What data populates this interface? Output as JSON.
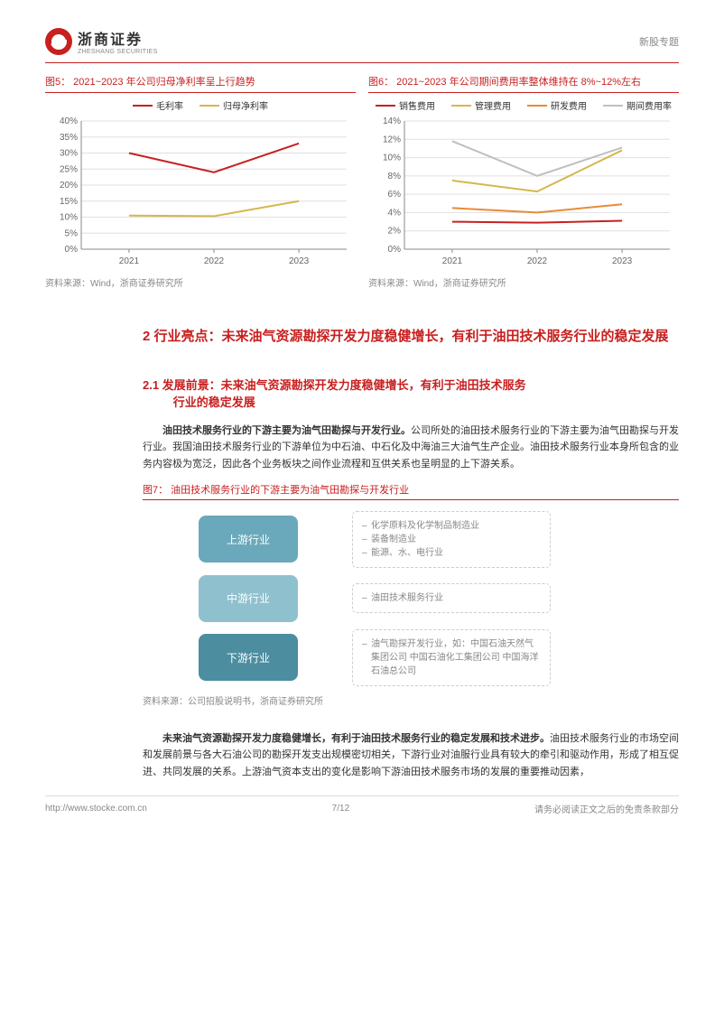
{
  "header": {
    "company_cn": "浙商证券",
    "company_en": "ZHESHANG SECURITIES",
    "right_text": "新股专题"
  },
  "chart5": {
    "type": "line",
    "title": "图5：  2021~2023 年公司归母净利率呈上行趋势",
    "categories": [
      "2021",
      "2022",
      "2023"
    ],
    "series": [
      {
        "name": "毛利率",
        "color": "#c82020",
        "values": [
          30,
          24,
          33
        ]
      },
      {
        "name": "归母净利率",
        "color": "#d6b64d",
        "values": [
          10.5,
          10.3,
          15
        ]
      }
    ],
    "ylim": [
      0,
      40
    ],
    "ytick_step": 5,
    "y_suffix": "%",
    "background": "#ffffff",
    "grid_color": "#e0e0e0",
    "source": "资料来源：Wind，浙商证券研究所"
  },
  "chart6": {
    "type": "line",
    "title": "图6：  2021~2023 年公司期间费用率整体维持在 8%~12%左右",
    "categories": [
      "2021",
      "2022",
      "2023"
    ],
    "series": [
      {
        "name": "销售费用",
        "color": "#c82020",
        "values": [
          3.0,
          2.9,
          3.1
        ]
      },
      {
        "name": "管理费用",
        "color": "#d6b64d",
        "values": [
          7.5,
          6.3,
          10.8
        ]
      },
      {
        "name": "研发费用",
        "color": "#e88b3a",
        "values": [
          4.5,
          4.0,
          4.9
        ]
      },
      {
        "name": "期间费用率",
        "color": "#bfbfbf",
        "values": [
          11.8,
          8.0,
          11.1
        ]
      }
    ],
    "ylim": [
      0,
      14
    ],
    "ytick_step": 2,
    "y_suffix": "%",
    "background": "#ffffff",
    "grid_color": "#e0e0e0",
    "source": "资料来源：Wind，浙商证券研究所"
  },
  "section2": {
    "title": "2 行业亮点：未来油气资源勘探开发力度稳健增长，有利于油田技术服务行业的稳定发展"
  },
  "section21": {
    "title_line1": "2.1 发展前景：未来油气资源勘探开发力度稳健增长，有利于油田技术服务",
    "title_line2": "行业的稳定发展",
    "para1_bold": "油田技术服务行业的下游主要为油气田勘探与开发行业。",
    "para1_rest": "公司所处的油田技术服务行业的下游主要为油气田勘探与开发行业。我国油田技术服务行业的下游单位为中石油、中石化及中海油三大油气生产企业。油田技术服务行业本身所包含的业务内容极为宽泛，因此各个业务板块之间作业流程和互供关系也呈明显的上下游关系。"
  },
  "fig7": {
    "title": "图7：  油田技术服务行业的下游主要为油气田勘探与开发行业",
    "nodes": [
      {
        "label": "上游行业",
        "bg": "#6aa9bb",
        "desc": [
          "化学原料及化学制品制造业",
          "装备制造业",
          "能源、水、电行业"
        ]
      },
      {
        "label": "中游行业",
        "bg": "#8fc0ce",
        "desc": [
          "油田技术服务行业"
        ]
      },
      {
        "label": "下游行业",
        "bg": "#4c8da0",
        "desc": [
          "油气勘探开发行业，如：中国石油天然气集团公司 中国石油化工集团公司 中国海洋石油总公司"
        ]
      }
    ],
    "source": "资料来源：公司招股说明书，浙商证券研究所"
  },
  "para2": {
    "bold": "未来油气资源勘探开发力度稳健增长，有利于油田技术服务行业的稳定发展和技术进步。",
    "rest": "油田技术服务行业的市场空间和发展前景与各大石油公司的勘探开发支出规模密切相关，下游行业对油服行业具有较大的牵引和驱动作用，形成了相互促进、共同发展的关系。上游油气资本支出的变化是影响下游油田技术服务市场的发展的重要推动因素，"
  },
  "footer": {
    "url": "http://www.stocke.com.cn",
    "page": "7/12",
    "disclaimer": "请务必阅读正文之后的免责条款部分"
  }
}
